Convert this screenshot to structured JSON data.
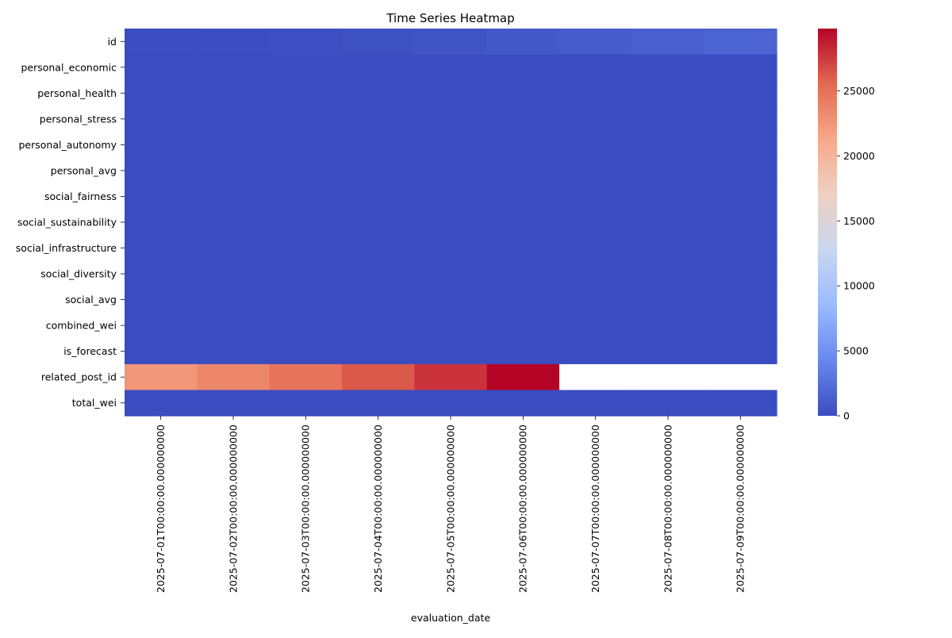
{
  "chart_data": {
    "type": "heatmap",
    "title": "Time Series Heatmap",
    "xlabel": "evaluation_date",
    "ylabel": "",
    "colormap": "coolwarm",
    "colormap_stops": [
      "#3b4cc0",
      "#6788ee",
      "#9abbff",
      "#c9d7f0",
      "#edd1c2",
      "#f7a889",
      "#e26952",
      "#b40426"
    ],
    "missing_color": "#ffffff",
    "vmin": 0,
    "vmax": 29800,
    "colorbar_ticks": [
      0,
      5000,
      10000,
      15000,
      20000,
      25000
    ],
    "x": [
      "2025-07-01T00:00:00.000000000",
      "2025-07-02T00:00:00.000000000",
      "2025-07-03T00:00:00.000000000",
      "2025-07-04T00:00:00.000000000",
      "2025-07-05T00:00:00.000000000",
      "2025-07-06T00:00:00.000000000",
      "2025-07-07T00:00:00.000000000",
      "2025-07-08T00:00:00.000000000",
      "2025-07-09T00:00:00.000000000"
    ],
    "y": [
      "id",
      "personal_economic",
      "personal_health",
      "personal_stress",
      "personal_autonomy",
      "personal_avg",
      "social_fairness",
      "social_sustainability",
      "social_infrastructure",
      "social_diversity",
      "social_avg",
      "combined_wei",
      "is_forecast",
      "related_post_id",
      "total_wei"
    ],
    "values": [
      [
        40,
        80,
        150,
        320,
        560,
        820,
        1100,
        1350,
        1650
      ],
      [
        0.5,
        0.5,
        0.5,
        0.5,
        0.5,
        0.5,
        0.5,
        0.5,
        0.5
      ],
      [
        0.5,
        0.5,
        0.5,
        0.5,
        0.5,
        0.5,
        0.5,
        0.5,
        0.5
      ],
      [
        0.5,
        0.5,
        0.5,
        0.5,
        0.5,
        0.5,
        0.5,
        0.5,
        0.5
      ],
      [
        0.5,
        0.5,
        0.5,
        0.5,
        0.5,
        0.5,
        0.5,
        0.5,
        0.5
      ],
      [
        0.5,
        0.5,
        0.5,
        0.5,
        0.5,
        0.5,
        0.5,
        0.5,
        0.5
      ],
      [
        0.5,
        0.5,
        0.5,
        0.5,
        0.5,
        0.5,
        0.5,
        0.5,
        0.5
      ],
      [
        0.5,
        0.5,
        0.5,
        0.5,
        0.5,
        0.5,
        0.5,
        0.5,
        0.5
      ],
      [
        0.5,
        0.5,
        0.5,
        0.5,
        0.5,
        0.5,
        0.5,
        0.5,
        0.5
      ],
      [
        0.5,
        0.5,
        0.5,
        0.5,
        0.5,
        0.5,
        0.5,
        0.5,
        0.5
      ],
      [
        0.5,
        0.5,
        0.5,
        0.5,
        0.5,
        0.5,
        0.5,
        0.5,
        0.5
      ],
      [
        0.5,
        0.5,
        0.5,
        0.5,
        0.5,
        0.5,
        0.5,
        0.5,
        0.5
      ],
      [
        0,
        0,
        0,
        0,
        0,
        0,
        0,
        0,
        0
      ],
      [
        22500,
        23500,
        24800,
        26200,
        27800,
        29800,
        null,
        null,
        null
      ],
      [
        0.5,
        0.5,
        0.5,
        0.5,
        0.5,
        0.5,
        0.5,
        0.5,
        0.5
      ]
    ]
  }
}
